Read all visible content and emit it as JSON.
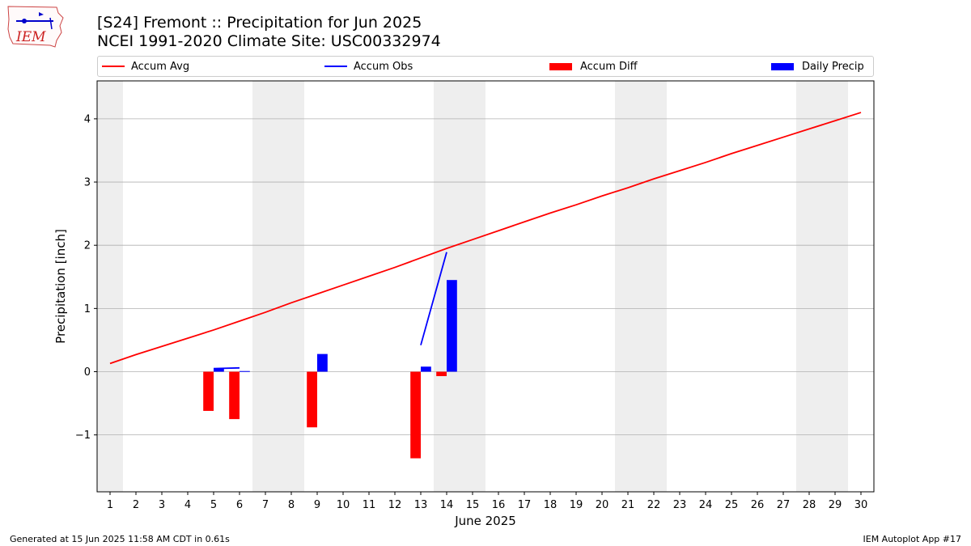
{
  "header": {
    "title_line1": "[S24] Fremont :: Precipitation for Jun 2025",
    "title_line2": "NCEI 1991-2020 Climate Site: USC00332974",
    "logo_text": "IEM"
  },
  "footer": {
    "left": "Generated at 15 Jun 2025 11:58 AM CDT in 0.61s",
    "right": "IEM Autoplot App #17"
  },
  "colors": {
    "avg": "#ff0000",
    "obs": "#0000ff",
    "diff": "#ff0000",
    "precip": "#0000ff",
    "weekend": "#eeeeee",
    "grid": "#b0b0b0"
  },
  "chart_data": {
    "type": "bar",
    "title": "[S24] Fremont :: Precipitation for Jun 2025",
    "xlabel": "June 2025",
    "ylabel": "Precipitation [inch]",
    "xlim": [
      0.5,
      30.5
    ],
    "ylim": [
      -1.9,
      4.6
    ],
    "yticks": [
      -1,
      0,
      1,
      2,
      3,
      4
    ],
    "ytick_labels": [
      "−1",
      "0",
      "1",
      "2",
      "3",
      "4"
    ],
    "days": [
      1,
      2,
      3,
      4,
      5,
      6,
      7,
      8,
      9,
      10,
      11,
      12,
      13,
      14,
      15,
      16,
      17,
      18,
      19,
      20,
      21,
      22,
      23,
      24,
      25,
      26,
      27,
      28,
      29,
      30
    ],
    "weekend_spans": [
      [
        0.5,
        1.5
      ],
      [
        6.5,
        8.5
      ],
      [
        13.5,
        15.5
      ],
      [
        20.5,
        22.5
      ],
      [
        27.5,
        29.5
      ]
    ],
    "legend": {
      "placement": "top",
      "entries": [
        "Accum Avg",
        "Accum Obs",
        "Accum Diff",
        "Daily Precip"
      ]
    },
    "series": [
      {
        "name": "Accum Avg",
        "kind": "line",
        "x": [
          1,
          2,
          3,
          4,
          5,
          6,
          7,
          8,
          9,
          10,
          11,
          12,
          13,
          14,
          15,
          16,
          17,
          18,
          19,
          20,
          21,
          22,
          23,
          24,
          25,
          26,
          27,
          28,
          29,
          30
        ],
        "values": [
          0.13,
          0.27,
          0.4,
          0.53,
          0.66,
          0.8,
          0.94,
          1.09,
          1.23,
          1.37,
          1.51,
          1.65,
          1.8,
          1.95,
          2.09,
          2.23,
          2.37,
          2.51,
          2.64,
          2.78,
          2.91,
          3.05,
          3.18,
          3.31,
          3.45,
          3.58,
          3.71,
          3.84,
          3.97,
          4.1
        ]
      },
      {
        "name": "Accum Obs",
        "kind": "line",
        "segments": [
          {
            "x": [
              5,
              6
            ],
            "values": [
              0.05,
              0.06
            ]
          },
          {
            "x": [
              13,
              14
            ],
            "values": [
              0.42,
              1.89
            ]
          }
        ]
      },
      {
        "name": "Accum Diff",
        "kind": "bar",
        "x": [
          5,
          6,
          9,
          13,
          14
        ],
        "values": [
          -0.62,
          -0.75,
          -0.88,
          -1.37,
          -0.07
        ]
      },
      {
        "name": "Daily Precip",
        "kind": "bar",
        "x": [
          5,
          6,
          9,
          13,
          14
        ],
        "values": [
          0.05,
          0.01,
          0.28,
          0.08,
          1.45
        ]
      }
    ]
  }
}
